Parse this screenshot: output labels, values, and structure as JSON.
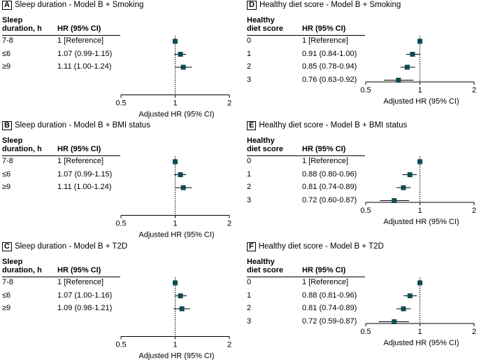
{
  "style": {
    "marker_color": "#0d4b52",
    "line_color": "#000000"
  },
  "chart_data": [
    {
      "type": "forest",
      "letter": "A",
      "title": "Sleep duration - Model B + Smoking",
      "col1_header": [
        "Sleep",
        "duration, h"
      ],
      "col2_header": "HR (95% CI)",
      "xlabel": "Adjusted HR (95% CI)",
      "xlim": [
        0.5,
        2
      ],
      "xticks": [
        "0.5",
        "1",
        "2"
      ],
      "reference_line": 1,
      "rows": [
        {
          "label": "7-8",
          "text": "1 [Reference]",
          "hr": 1.0,
          "lo": 1.0,
          "hi": 1.0
        },
        {
          "label": "≤6",
          "text": "1.07 (0.99-1.15)",
          "hr": 1.07,
          "lo": 0.99,
          "hi": 1.15
        },
        {
          "label": "≥9",
          "text": "1.11 (1.00-1.24)",
          "hr": 1.11,
          "lo": 1.0,
          "hi": 1.24
        }
      ]
    },
    {
      "type": "forest",
      "letter": "D",
      "title": "Healthy diet score - Model B + Smoking",
      "col1_header": [
        "Healthy",
        "diet score"
      ],
      "col2_header": "HR (95% CI)",
      "xlabel": "Adjusted HR (95% CI)",
      "xlim": [
        0.5,
        2
      ],
      "xticks": [
        "0.5",
        "1",
        "2"
      ],
      "reference_line": 1,
      "rows": [
        {
          "label": "0",
          "text": "1 [Reference]",
          "hr": 1.0,
          "lo": 1.0,
          "hi": 1.0
        },
        {
          "label": "1",
          "text": "0.91 (0.84-1.00)",
          "hr": 0.91,
          "lo": 0.84,
          "hi": 1.0
        },
        {
          "label": "2",
          "text": "0.85 (0.78-0.94)",
          "hr": 0.85,
          "lo": 0.78,
          "hi": 0.94
        },
        {
          "label": "3",
          "text": "0.76 (0.63-0.92)",
          "hr": 0.76,
          "lo": 0.63,
          "hi": 0.92
        }
      ]
    },
    {
      "type": "forest",
      "letter": "B",
      "title": "Sleep duration - Model B + BMI status",
      "col1_header": [
        "Sleep",
        "duration, h"
      ],
      "col2_header": "HR (95% CI)",
      "xlabel": "Adjusted HR (95% CI)",
      "xlim": [
        0.5,
        2
      ],
      "xticks": [
        "0.5",
        "1",
        "2"
      ],
      "reference_line": 1,
      "rows": [
        {
          "label": "7-8",
          "text": "1 [Reference]",
          "hr": 1.0,
          "lo": 1.0,
          "hi": 1.0
        },
        {
          "label": "≤6",
          "text": "1.07 (0.99-1.15)",
          "hr": 1.07,
          "lo": 0.99,
          "hi": 1.15
        },
        {
          "label": "≥9",
          "text": "1.11 (1.00-1.24)",
          "hr": 1.11,
          "lo": 1.0,
          "hi": 1.24
        }
      ]
    },
    {
      "type": "forest",
      "letter": "E",
      "title": "Healthy diet score - Model B + BMI status",
      "col1_header": [
        "Healthy",
        "diet score"
      ],
      "col2_header": "HR (95% CI)",
      "xlabel": "Adjusted HR (95% CI)",
      "xlim": [
        0.5,
        2
      ],
      "xticks": [
        "0.5",
        "1",
        "2"
      ],
      "reference_line": 1,
      "rows": [
        {
          "label": "0",
          "text": "1 [Reference]",
          "hr": 1.0,
          "lo": 1.0,
          "hi": 1.0
        },
        {
          "label": "1",
          "text": "0.88 (0.80-0.96)",
          "hr": 0.88,
          "lo": 0.8,
          "hi": 0.96
        },
        {
          "label": "2",
          "text": "0.81 (0.74-0.89)",
          "hr": 0.81,
          "lo": 0.74,
          "hi": 0.89
        },
        {
          "label": "3",
          "text": "0.72 (0.60-0.87)",
          "hr": 0.72,
          "lo": 0.6,
          "hi": 0.87
        }
      ]
    },
    {
      "type": "forest",
      "letter": "C",
      "title": "Sleep duration - Model B + T2D",
      "col1_header": [
        "Sleep",
        "duration, h"
      ],
      "col2_header": "HR (95% CI)",
      "xlabel": "Adjusted HR (95% CI)",
      "xlim": [
        0.5,
        2
      ],
      "xticks": [
        "0.5",
        "1",
        "2"
      ],
      "reference_line": 1,
      "rows": [
        {
          "label": "7-8",
          "text": "1 [Reference]",
          "hr": 1.0,
          "lo": 1.0,
          "hi": 1.0
        },
        {
          "label": "≤6",
          "text": "1.07 (1.00-1.16)",
          "hr": 1.07,
          "lo": 1.0,
          "hi": 1.16
        },
        {
          "label": "≥9",
          "text": "1.09 (0.98-1.21)",
          "hr": 1.09,
          "lo": 0.98,
          "hi": 1.21
        }
      ]
    },
    {
      "type": "forest",
      "letter": "F",
      "title": "Healthy diet score - Model B + T2D",
      "col1_header": [
        "Healthy",
        "diet score"
      ],
      "col2_header": "HR (95% CI)",
      "xlabel": "Adjusted HR (95% CI)",
      "xlim": [
        0.5,
        2
      ],
      "xticks": [
        "0.5",
        "1",
        "2"
      ],
      "reference_line": 1,
      "rows": [
        {
          "label": "0",
          "text": "1 [Reference]",
          "hr": 1.0,
          "lo": 1.0,
          "hi": 1.0
        },
        {
          "label": "1",
          "text": "0.88 (0.81-0.96)",
          "hr": 0.88,
          "lo": 0.81,
          "hi": 0.96
        },
        {
          "label": "2",
          "text": "0.81 (0.74-0.89)",
          "hr": 0.81,
          "lo": 0.74,
          "hi": 0.89
        },
        {
          "label": "3",
          "text": "0.72 (0.59-0.87)",
          "hr": 0.72,
          "lo": 0.59,
          "hi": 0.87
        }
      ]
    }
  ]
}
